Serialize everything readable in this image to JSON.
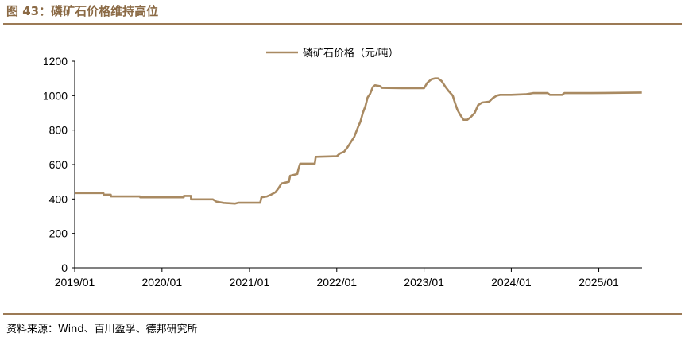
{
  "figure": {
    "title": "图 43：磷矿石价格维持高位",
    "source": "资料来源：Wind、百川盈孚、德邦研究所"
  },
  "colors": {
    "accent": "#9C7A55",
    "line": "#A98A62",
    "title": "#8B6A45",
    "axis": "#000000"
  },
  "chart_data": {
    "type": "line",
    "title": "",
    "xlabel": "",
    "ylabel": "",
    "ylim": [
      0,
      1200
    ],
    "yticks": [
      "0",
      "200",
      "400",
      "600",
      "800",
      "1000",
      "1200"
    ],
    "xticks": [
      "2019/01",
      "2020/01",
      "2021/01",
      "2022/01",
      "2023/01",
      "2024/01",
      "2025/01"
    ],
    "xlim": [
      "2019/01",
      "2025/07"
    ],
    "grid": false,
    "legend_position": "top-center",
    "series": [
      {
        "name": "磷矿石价格（元/吨）",
        "points": [
          [
            "2019/01/01",
            435
          ],
          [
            "2019/05/01",
            435
          ],
          [
            "2019/05/02",
            425
          ],
          [
            "2019/06/01",
            425
          ],
          [
            "2019/06/02",
            415
          ],
          [
            "2019/10/01",
            415
          ],
          [
            "2019/10/02",
            410
          ],
          [
            "2020/04/01",
            410
          ],
          [
            "2020/04/02",
            418
          ],
          [
            "2020/05/01",
            418
          ],
          [
            "2020/05/02",
            398
          ],
          [
            "2020/08/01",
            398
          ],
          [
            "2020/08/15",
            385
          ],
          [
            "2020/09/15",
            377
          ],
          [
            "2020/11/01",
            373
          ],
          [
            "2020/11/15",
            378
          ],
          [
            "2021/02/15",
            378
          ],
          [
            "2021/02/20",
            410
          ],
          [
            "2021/03/15",
            415
          ],
          [
            "2021/04/01",
            425
          ],
          [
            "2021/04/20",
            440
          ],
          [
            "2021/05/01",
            460
          ],
          [
            "2021/05/15",
            490
          ],
          [
            "2021/06/15",
            500
          ],
          [
            "2021/06/20",
            535
          ],
          [
            "2021/07/20",
            545
          ],
          [
            "2021/07/25",
            575
          ],
          [
            "2021/08/01",
            605
          ],
          [
            "2021/10/01",
            605
          ],
          [
            "2021/10/05",
            645
          ],
          [
            "2022/01/01",
            648
          ],
          [
            "2022/01/15",
            665
          ],
          [
            "2022/02/01",
            675
          ],
          [
            "2022/02/15",
            700
          ],
          [
            "2022/03/01",
            730
          ],
          [
            "2022/03/15",
            760
          ],
          [
            "2022/04/01",
            820
          ],
          [
            "2022/04/10",
            850
          ],
          [
            "2022/04/20",
            900
          ],
          [
            "2022/05/01",
            940
          ],
          [
            "2022/05/10",
            990
          ],
          [
            "2022/05/20",
            1010
          ],
          [
            "2022/06/01",
            1050
          ],
          [
            "2022/06/10",
            1060
          ],
          [
            "2022/07/01",
            1055
          ],
          [
            "2022/07/10",
            1045
          ],
          [
            "2022/10/01",
            1043
          ],
          [
            "2022/12/01",
            1043
          ],
          [
            "2023/01/01",
            1043
          ],
          [
            "2023/01/15",
            1075
          ],
          [
            "2023/02/01",
            1095
          ],
          [
            "2023/02/15",
            1100
          ],
          [
            "2023/03/01",
            1100
          ],
          [
            "2023/03/15",
            1085
          ],
          [
            "2023/04/01",
            1050
          ],
          [
            "2023/04/15",
            1025
          ],
          [
            "2023/05/01",
            1000
          ],
          [
            "2023/05/10",
            960
          ],
          [
            "2023/05/20",
            920
          ],
          [
            "2023/06/01",
            890
          ],
          [
            "2023/06/15",
            860
          ],
          [
            "2023/07/01",
            860
          ],
          [
            "2023/07/15",
            875
          ],
          [
            "2023/08/01",
            900
          ],
          [
            "2023/08/15",
            945
          ],
          [
            "2023/09/01",
            960
          ],
          [
            "2023/10/01",
            965
          ],
          [
            "2023/10/15",
            985
          ],
          [
            "2023/11/01",
            1000
          ],
          [
            "2023/11/15",
            1005
          ],
          [
            "2024/01/01",
            1005
          ],
          [
            "2024/03/01",
            1008
          ],
          [
            "2024/04/01",
            1015
          ],
          [
            "2024/06/01",
            1015
          ],
          [
            "2024/06/10",
            1005
          ],
          [
            "2024/08/01",
            1005
          ],
          [
            "2024/08/10",
            1015
          ],
          [
            "2024/12/01",
            1015
          ],
          [
            "2025/06/30",
            1018
          ]
        ]
      }
    ]
  }
}
